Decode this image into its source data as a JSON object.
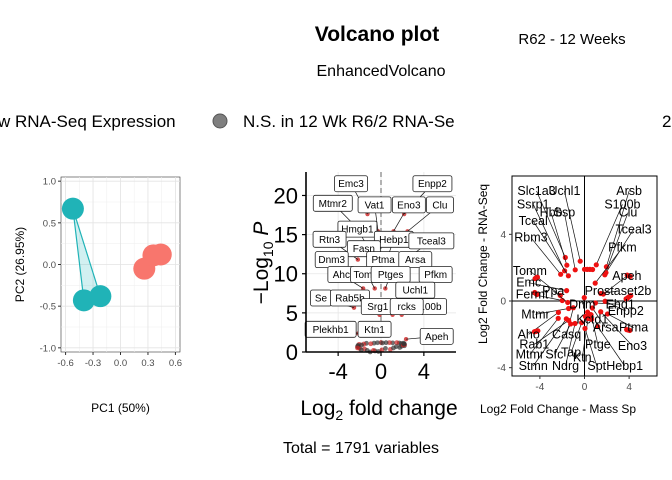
{
  "header": {
    "title": "Volcano plot",
    "subtitle": "EnhancedVolcano",
    "condition": "R62 - 12 Weeks",
    "legend_left_fragment": "w RNA-Seq Expression",
    "legend_mid_fragment": "N.S. in 12 Wk R6/2 RNA-Se",
    "legend_right_fragment": "2",
    "footer": "Total = 1791 variables"
  },
  "colors": {
    "teal": "#20B3B7",
    "salmon": "#F8766D",
    "grey_dot": "#7f7f7f",
    "red_points": "#ee1111",
    "volcano_red": "#cc2222"
  },
  "chart_data": [
    {
      "type": "scatter",
      "id": "pca",
      "xlabel": "PC1 (50%)",
      "ylabel": "PC2 (26.95%)",
      "xlim": [
        -0.65,
        0.65
      ],
      "ylim": [
        -1.05,
        1.05
      ],
      "xticks": [
        -0.6,
        -0.3,
        0.0,
        0.3,
        0.6
      ],
      "xtick_labels": [
        "-0.6",
        "-0.3",
        "0.0",
        "0.3",
        "0.6"
      ],
      "yticks": [
        -1.0,
        -0.5,
        0.0,
        0.5,
        1.0
      ],
      "ytick_labels": [
        "-1.0",
        "-0.5",
        "0.0",
        "0.5",
        "1.0"
      ],
      "grid": true,
      "series": [
        {
          "color": "teal",
          "x": [
            -0.52,
            -0.4,
            -0.22
          ],
          "y": [
            0.67,
            -0.43,
            -0.38
          ]
        },
        {
          "color": "salmon",
          "x": [
            0.26,
            0.36,
            0.44
          ],
          "y": [
            -0.05,
            0.11,
            0.12
          ]
        }
      ]
    },
    {
      "type": "scatter",
      "id": "volcano",
      "xlabel_main": "Log",
      "xlabel_sub": "2",
      "xlabel_rest": " fold change",
      "ylabel_main": "−Log",
      "ylabel_sub": "10",
      "ylabel_rest": " P",
      "xlim": [
        -7,
        7
      ],
      "ylim": [
        0,
        23
      ],
      "xticks": [
        -4,
        0,
        4
      ],
      "xtick_labels": [
        "-4",
        "0",
        "4"
      ],
      "yticks": [
        0,
        5,
        10,
        15,
        20
      ],
      "ytick_labels": [
        "0",
        "5",
        "10",
        "15",
        "20"
      ],
      "grid": true,
      "vline": 0,
      "labels": [
        {
          "text": "Emc3",
          "x": -2.8,
          "y": 21.5
        },
        {
          "text": "Enpp2",
          "x": 4.8,
          "y": 21.5
        },
        {
          "text": "Mtmr2",
          "x": -4.5,
          "y": 19.0
        },
        {
          "text": "Vat1",
          "x": -0.6,
          "y": 18.8
        },
        {
          "text": "Eno3",
          "x": 2.6,
          "y": 18.8
        },
        {
          "text": "Clu",
          "x": 5.5,
          "y": 18.8
        },
        {
          "text": "Hmgb1",
          "x": -2.2,
          "y": 15.7
        },
        {
          "text": "Rtn3",
          "x": -4.8,
          "y": 14.4
        },
        {
          "text": "Hebp1",
          "x": 1.2,
          "y": 14.4
        },
        {
          "text": "Tceal3",
          "x": 4.7,
          "y": 14.2
        },
        {
          "text": "Fasn",
          "x": -1.6,
          "y": 13.2
        },
        {
          "text": "Dnm3",
          "x": -4.6,
          "y": 11.8
        },
        {
          "text": "Ptma",
          "x": 0.2,
          "y": 11.8
        },
        {
          "text": "Arsa",
          "x": 3.2,
          "y": 11.8
        },
        {
          "text": "Ahc",
          "x": -3.7,
          "y": 9.9
        },
        {
          "text": "Tomm",
          "x": -1.3,
          "y": 9.9
        },
        {
          "text": "Ptges",
          "x": 0.9,
          "y": 9.9
        },
        {
          "text": "Pfkm",
          "x": 5.1,
          "y": 9.9
        },
        {
          "text": "Uchl1",
          "x": 3.2,
          "y": 7.9
        },
        {
          "text": "Se",
          "x": -5.6,
          "y": 6.9
        },
        {
          "text": "Rab5b",
          "x": -2.9,
          "y": 6.9
        },
        {
          "text": "S100b",
          "x": 4.3,
          "y": 5.8
        },
        {
          "text": "Srg1",
          "x": -0.3,
          "y": 5.8
        },
        {
          "text": "rcks",
          "x": 2.4,
          "y": 5.8
        },
        {
          "text": "Plekhb1",
          "x": -4.7,
          "y": 2.9
        },
        {
          "text": "Ktn1",
          "x": -0.6,
          "y": 2.9
        },
        {
          "text": "Apeh",
          "x": 5.2,
          "y": 2.0
        }
      ]
    },
    {
      "type": "scatter",
      "id": "correlation",
      "xlabel": "Log2 Fold Change - Mass Sp",
      "ylabel": "Log2 Fold Change - RNA-Seq",
      "xlim": [
        -6.5,
        6.5
      ],
      "ylim": [
        -4.5,
        7.5
      ],
      "xticks": [
        -4,
        0,
        4
      ],
      "xtick_labels": [
        "-4",
        "0",
        "4"
      ],
      "yticks": [
        -4,
        0,
        4
      ],
      "ytick_labels": [
        "-4",
        "0",
        "4"
      ],
      "hline": 0,
      "vline": 0,
      "labels": [
        {
          "text": "Slc1a3",
          "x": -4.3,
          "y": 6.6
        },
        {
          "text": "Uchl1",
          "x": -1.8,
          "y": 6.6
        },
        {
          "text": "Arsb",
          "x": 4.0,
          "y": 6.6
        },
        {
          "text": "Ssrp1",
          "x": -4.6,
          "y": 5.8
        },
        {
          "text": "S100b",
          "x": 3.4,
          "y": 5.8
        },
        {
          "text": "Hbb",
          "x": -3.0,
          "y": 5.3
        },
        {
          "text": "Ssp",
          "x": -1.8,
          "y": 5.3
        },
        {
          "text": "Clu",
          "x": 3.9,
          "y": 5.3
        },
        {
          "text": "Tceal",
          "x": -4.6,
          "y": 4.8
        },
        {
          "text": "Tceal3",
          "x": 4.4,
          "y": 4.3
        },
        {
          "text": "Rbm3",
          "x": -4.8,
          "y": 3.8
        },
        {
          "text": "Pfkm",
          "x": 3.4,
          "y": 3.2
        },
        {
          "text": "Tomm",
          "x": -4.9,
          "y": 1.8
        },
        {
          "text": "Apeh",
          "x": 3.8,
          "y": 1.5
        },
        {
          "text": "Emc",
          "x": -5.0,
          "y": 1.1
        },
        {
          "text": "Prostaset2b",
          "x": 3.0,
          "y": 0.6
        },
        {
          "text": "Fermt",
          "x": -4.7,
          "y": 0.4
        },
        {
          "text": "Ppa",
          "x": -2.8,
          "y": 0.6
        },
        {
          "text": "Ehd1",
          "x": 3.2,
          "y": -0.2
        },
        {
          "text": "Dnm",
          "x": -0.2,
          "y": -0.2
        },
        {
          "text": "Enpp2",
          "x": 3.7,
          "y": -0.6
        },
        {
          "text": "Mtmr",
          "x": -4.4,
          "y": -0.8
        },
        {
          "text": "Kctd1",
          "x": 0.7,
          "y": -1.1
        },
        {
          "text": "Aho",
          "x": -5.0,
          "y": -2.0
        },
        {
          "text": "Casq",
          "x": -1.6,
          "y": -2.0
        },
        {
          "text": "Arsa",
          "x": 1.9,
          "y": -1.6
        },
        {
          "text": "Ptma",
          "x": 4.4,
          "y": -1.6
        },
        {
          "text": "Rab1",
          "x": -4.5,
          "y": -2.6
        },
        {
          "text": "Ptge",
          "x": 1.2,
          "y": -2.6
        },
        {
          "text": "Eno3",
          "x": 4.3,
          "y": -2.7
        },
        {
          "text": "Mtmr",
          "x": -4.9,
          "y": -3.2
        },
        {
          "text": "Sfc",
          "x": -2.7,
          "y": -3.2
        },
        {
          "text": "Tap",
          "x": -1.2,
          "y": -3.1
        },
        {
          "text": "Ktn",
          "x": -0.2,
          "y": -3.4
        },
        {
          "text": "Stmn",
          "x": -4.6,
          "y": -3.9
        },
        {
          "text": "Ndrg",
          "x": -1.7,
          "y": -3.9
        },
        {
          "text": "Spt",
          "x": 1.1,
          "y": -3.9
        },
        {
          "text": "Hebp1",
          "x": 3.6,
          "y": -3.9
        }
      ]
    }
  ]
}
